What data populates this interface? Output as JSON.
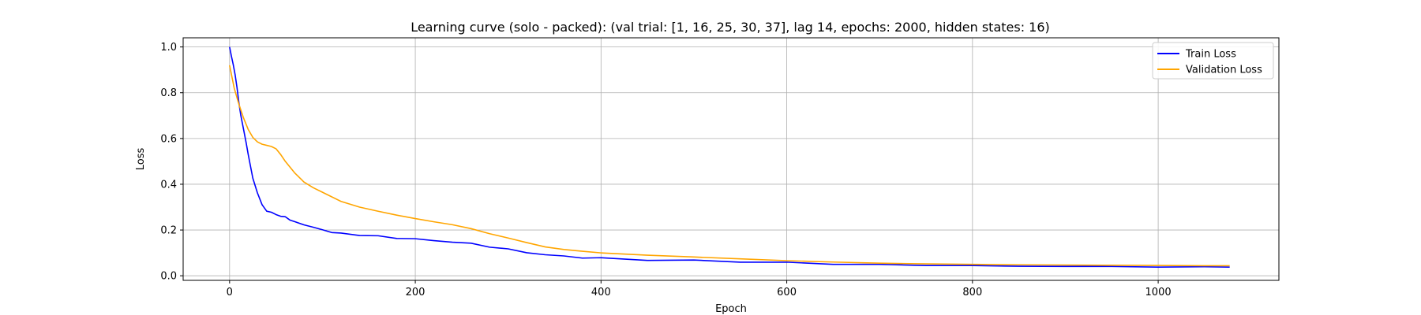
{
  "chart_data": {
    "type": "line",
    "title": "Learning curve (solo - packed): (val trial: [1, 16, 25, 30, 37], lag 14, epochs: 2000, hidden states: 16)",
    "xlabel": "Epoch",
    "ylabel": "Loss",
    "xlim": [
      -50,
      1130
    ],
    "ylim": [
      -0.02,
      1.04
    ],
    "xticks": [
      0,
      200,
      400,
      600,
      800,
      1000
    ],
    "yticks": [
      0.0,
      0.2,
      0.4,
      0.6,
      0.8,
      1.0
    ],
    "xtick_labels": [
      "0",
      "200",
      "400",
      "600",
      "800",
      "1000"
    ],
    "ytick_labels": [
      "0.0",
      "0.2",
      "0.4",
      "0.6",
      "0.8",
      "1.0"
    ],
    "grid": true,
    "legend_position": "top-right",
    "series": [
      {
        "name": "Train Loss",
        "color": "#0000ff",
        "x": [
          0,
          2,
          4,
          6,
          8,
          10,
          12,
          15,
          18,
          20,
          25,
          30,
          35,
          40,
          45,
          50,
          55,
          60,
          65,
          70,
          80,
          90,
          100,
          110,
          120,
          140,
          160,
          180,
          200,
          220,
          240,
          260,
          280,
          300,
          320,
          340,
          360,
          380,
          400,
          450,
          500,
          550,
          600,
          650,
          700,
          750,
          800,
          850,
          900,
          950,
          1000,
          1050,
          1077
        ],
        "values": [
          1.0,
          0.96,
          0.92,
          0.88,
          0.82,
          0.76,
          0.7,
          0.64,
          0.58,
          0.53,
          0.43,
          0.36,
          0.31,
          0.285,
          0.275,
          0.268,
          0.262,
          0.255,
          0.245,
          0.238,
          0.225,
          0.21,
          0.2,
          0.192,
          0.186,
          0.178,
          0.172,
          0.166,
          0.16,
          0.154,
          0.148,
          0.14,
          0.128,
          0.115,
          0.102,
          0.092,
          0.085,
          0.08,
          0.076,
          0.07,
          0.066,
          0.062,
          0.057,
          0.052,
          0.048,
          0.046,
          0.044,
          0.042,
          0.041,
          0.04,
          0.039,
          0.038,
          0.038
        ]
      },
      {
        "name": "Validation Loss",
        "color": "#ffa500",
        "x": [
          0,
          5,
          10,
          15,
          20,
          25,
          30,
          35,
          40,
          45,
          50,
          55,
          60,
          70,
          80,
          90,
          100,
          120,
          140,
          160,
          180,
          200,
          220,
          240,
          260,
          280,
          300,
          320,
          340,
          360,
          380,
          400,
          450,
          500,
          550,
          600,
          650,
          700,
          750,
          800,
          850,
          900,
          950,
          1000,
          1050,
          1077
        ],
        "values": [
          0.92,
          0.82,
          0.75,
          0.69,
          0.64,
          0.605,
          0.585,
          0.575,
          0.57,
          0.565,
          0.555,
          0.53,
          0.5,
          0.45,
          0.41,
          0.385,
          0.365,
          0.325,
          0.3,
          0.282,
          0.265,
          0.25,
          0.236,
          0.223,
          0.206,
          0.184,
          0.165,
          0.145,
          0.126,
          0.115,
          0.107,
          0.1,
          0.09,
          0.082,
          0.074,
          0.066,
          0.06,
          0.055,
          0.052,
          0.05,
          0.048,
          0.047,
          0.046,
          0.045,
          0.044,
          0.044
        ]
      }
    ]
  }
}
